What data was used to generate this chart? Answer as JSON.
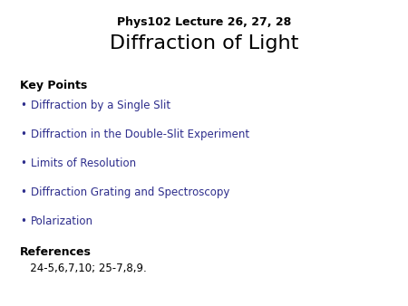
{
  "bg_color": "#ffffff",
  "subtitle": "Phys102 Lecture 26, 27, 28",
  "title": "Diffraction of Light",
  "subtitle_fontsize": 9,
  "title_fontsize": 16,
  "title_color": "#000000",
  "subtitle_color": "#000000",
  "section1_header": "Key Points",
  "bullet_color": "#2d2d8c",
  "bullet_items": [
    "Diffraction by a Single Slit",
    "Diffraction in the Double-Slit Experiment",
    "Limits of Resolution",
    "Diffraction Grating and Spectroscopy",
    "Polarization"
  ],
  "section2_header": "References",
  "references_text": "   24-5,6,7,10; 25-7,8,9.",
  "header_fontsize": 9,
  "bullet_fontsize": 8.5,
  "ref_fontsize": 8.5
}
